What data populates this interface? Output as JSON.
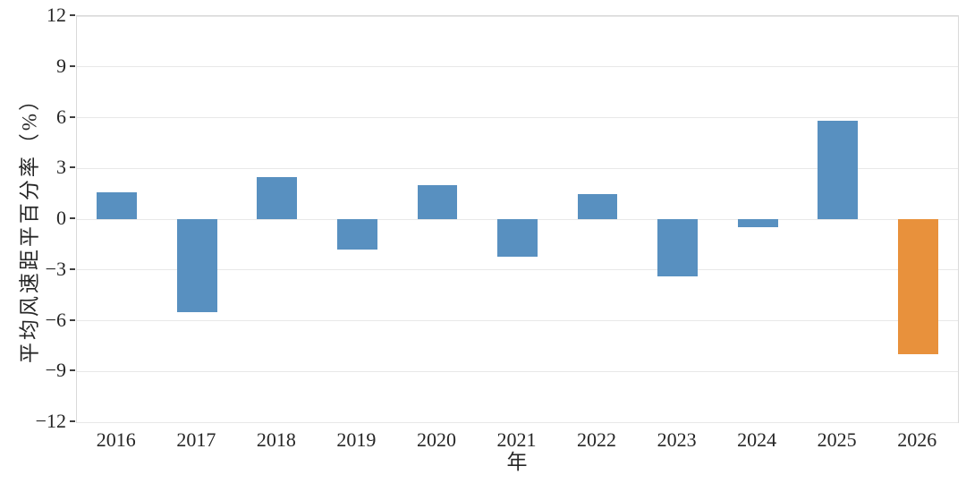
{
  "chart_data": {
    "type": "bar",
    "title": "",
    "xlabel": "年",
    "ylabel": "平均风速距平百分率（%）",
    "categories": [
      "2016",
      "2017",
      "2018",
      "2019",
      "2020",
      "2021",
      "2022",
      "2023",
      "2024",
      "2025",
      "2026"
    ],
    "values": [
      1.6,
      -5.5,
      2.5,
      -1.8,
      2.0,
      -2.2,
      1.5,
      -3.4,
      -0.5,
      5.8,
      -8.0
    ],
    "ylim": [
      -12,
      12
    ],
    "yticks": [
      12,
      9,
      6,
      3,
      0,
      -3,
      -6,
      -9,
      -12
    ],
    "grid": true,
    "legend": "none",
    "bar_width_fraction": 0.5,
    "highlight_index": 10,
    "colors": {
      "bar_default": "#5890C0",
      "bar_highlight": "#E8913C",
      "gridline": "#e8e8e8",
      "spine": "#d9d9d9",
      "tick_mark": "#404040",
      "text": "#262626",
      "background": "#ffffff"
    }
  }
}
